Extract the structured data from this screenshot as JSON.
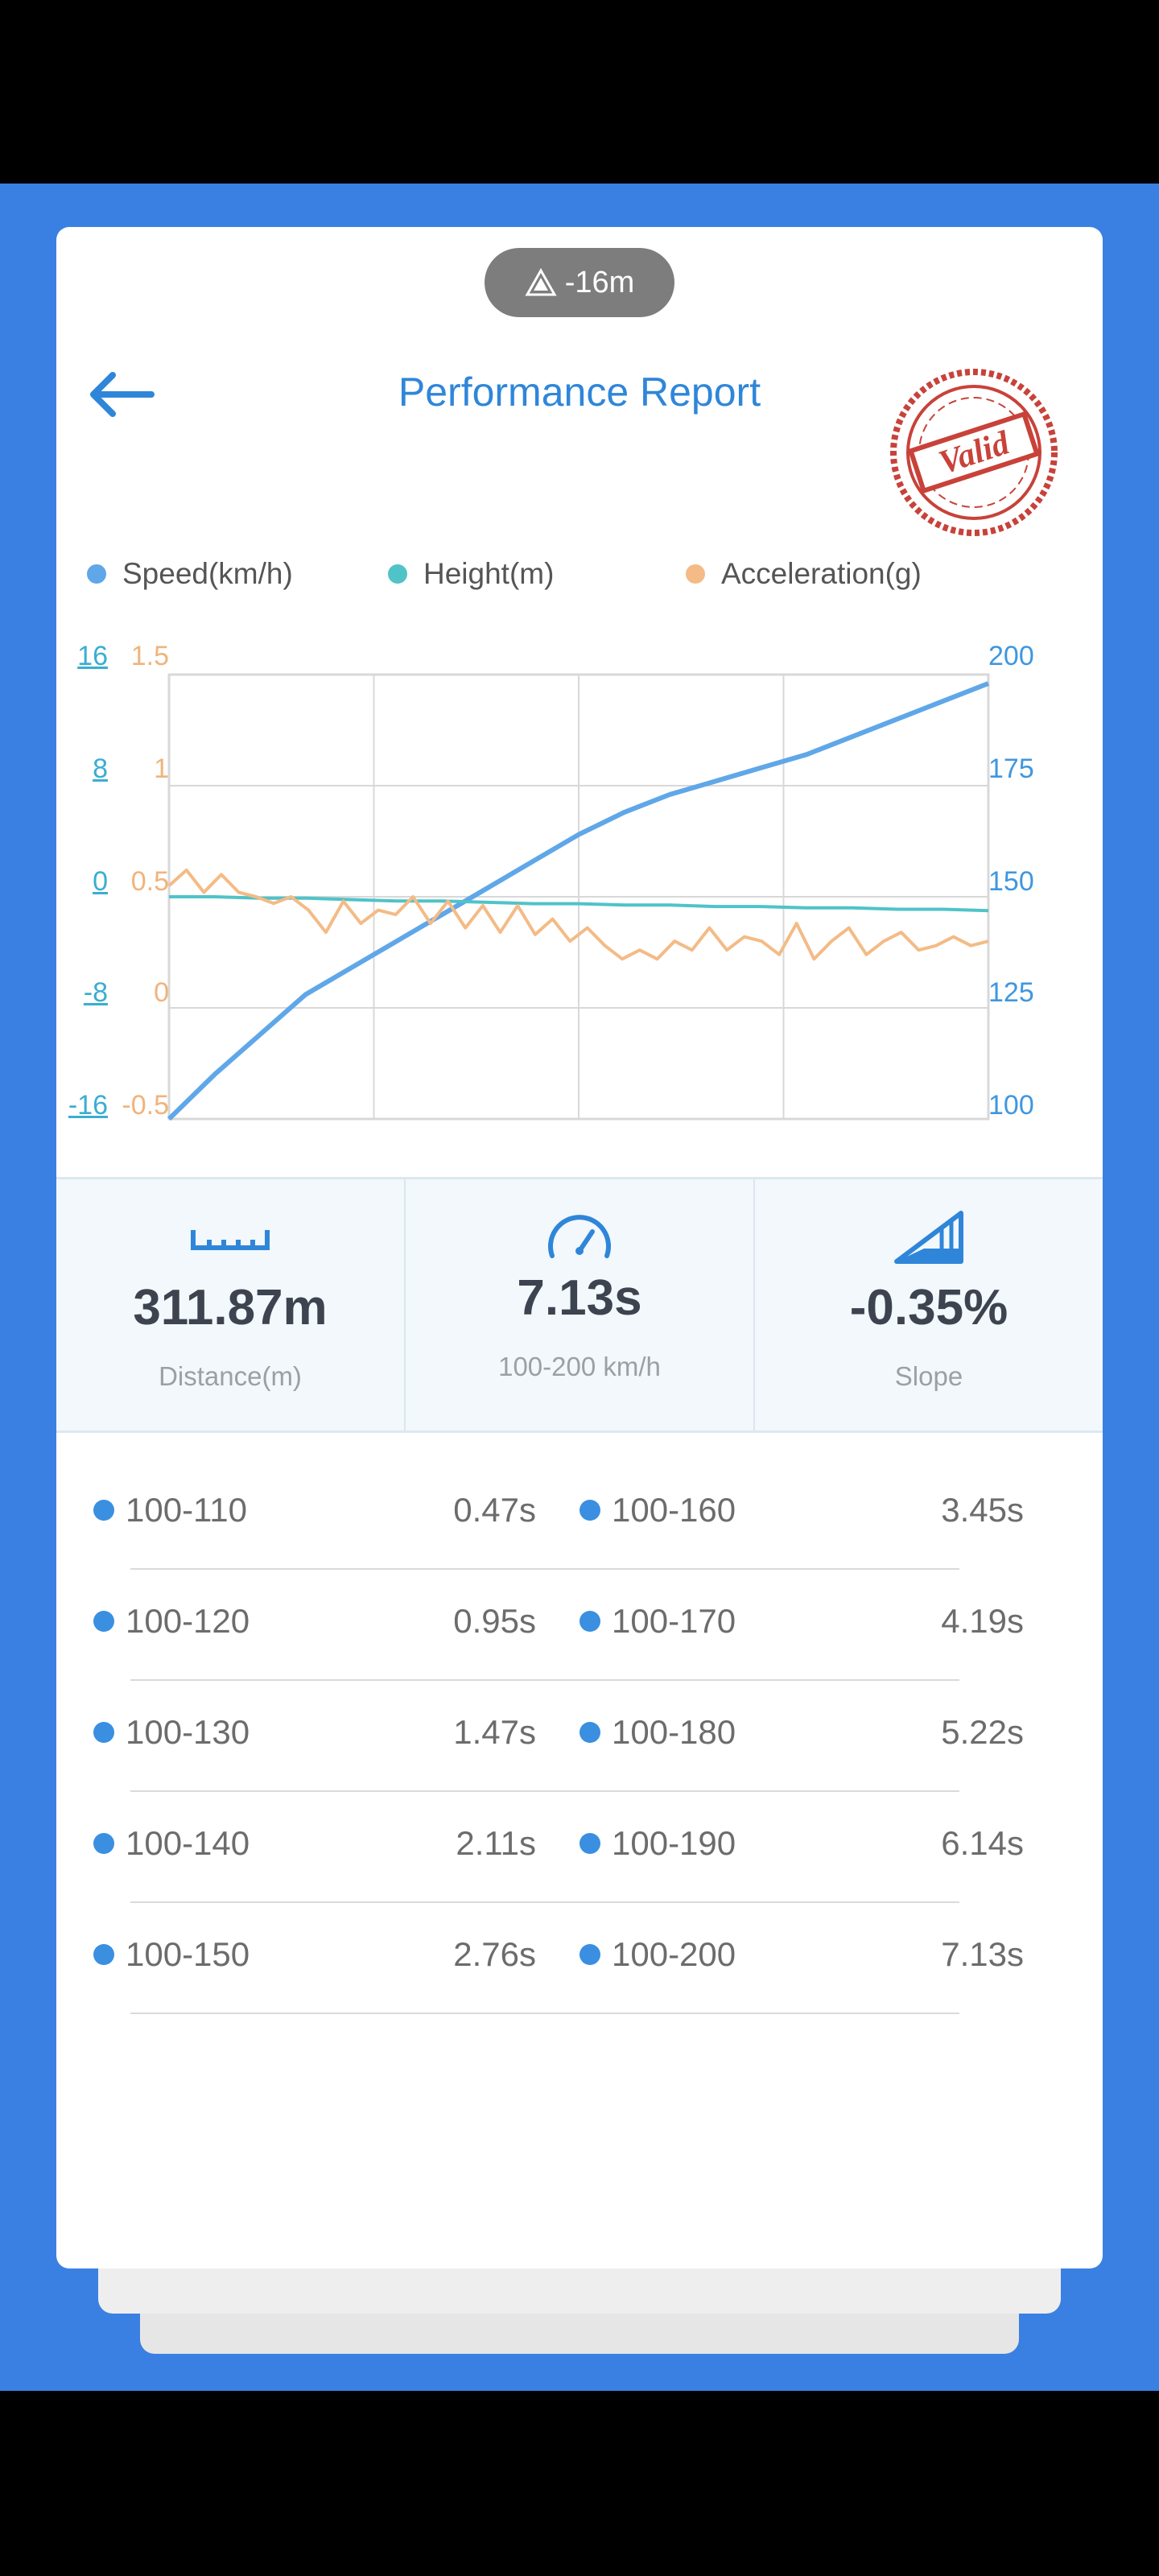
{
  "status_pill": {
    "text": "-16m",
    "icon": "elevation-triangle-icon"
  },
  "header": {
    "title": "Performance Report",
    "back_icon": "back-arrow-icon",
    "stamp_text": "Valid"
  },
  "legend": [
    {
      "label": "Speed(km/h)",
      "color": "#5fa7e8"
    },
    {
      "label": "Height(m)",
      "color": "#4fc3c8"
    },
    {
      "label": "Acceleration(g)",
      "color": "#f4bb86"
    }
  ],
  "axes": {
    "height_ticks": [
      "16",
      "8",
      "0",
      "-8",
      "-16"
    ],
    "accel_ticks": [
      "1.5",
      "1",
      "0.5",
      "0",
      "-0.5"
    ],
    "speed_ticks": [
      "200",
      "175",
      "150",
      "125",
      "100"
    ]
  },
  "chart_data": {
    "type": "line",
    "x_count": 5,
    "series": [
      {
        "name": "Speed(km/h)",
        "axis": "speed",
        "color": "#5fa7e8",
        "values": [
          100,
          110,
          119,
          128,
          134,
          140,
          146,
          152,
          158,
          164,
          169,
          173,
          176,
          179,
          182,
          186,
          190,
          194,
          198
        ]
      },
      {
        "name": "Height(m)",
        "axis": "height",
        "color": "#4fc3c8",
        "values": [
          0,
          0,
          -0.1,
          -0.1,
          -0.2,
          -0.3,
          -0.3,
          -0.4,
          -0.5,
          -0.5,
          -0.6,
          -0.6,
          -0.7,
          -0.7,
          -0.8,
          -0.8,
          -0.9,
          -0.9,
          -1
        ]
      },
      {
        "name": "Acceleration(g)",
        "axis": "accel",
        "color": "#f4bb86",
        "values": [
          0.55,
          0.62,
          0.52,
          0.6,
          0.52,
          0.5,
          0.47,
          0.5,
          0.44,
          0.34,
          0.48,
          0.38,
          0.44,
          0.42,
          0.5,
          0.38,
          0.48,
          0.36,
          0.46,
          0.34,
          0.46,
          0.33,
          0.4,
          0.3,
          0.36,
          0.28,
          0.22,
          0.26,
          0.22,
          0.3,
          0.26,
          0.36,
          0.26,
          0.32,
          0.3,
          0.24,
          0.38,
          0.22,
          0.3,
          0.36,
          0.24,
          0.3,
          0.34,
          0.26,
          0.28,
          0.32,
          0.28,
          0.3
        ]
      }
    ],
    "axes_ranges": {
      "speed": [
        100,
        200
      ],
      "height": [
        -16,
        16
      ],
      "accel": [
        -0.5,
        1.5
      ]
    },
    "grid": true
  },
  "stats": [
    {
      "value": "311.87m",
      "label": "Distance(m)",
      "icon": "ruler-icon"
    },
    {
      "value": "7.13s",
      "label": "100-200 km/h",
      "icon": "speedometer-icon"
    },
    {
      "value": "-0.35%",
      "label": "Slope",
      "icon": "slope-icon"
    }
  ],
  "splits": [
    {
      "left_label": "100-110",
      "left_time": "0.47s",
      "right_label": "100-160",
      "right_time": "3.45s"
    },
    {
      "left_label": "100-120",
      "left_time": "0.95s",
      "right_label": "100-170",
      "right_time": "4.19s"
    },
    {
      "left_label": "100-130",
      "left_time": "1.47s",
      "right_label": "100-180",
      "right_time": "5.22s"
    },
    {
      "left_label": "100-140",
      "left_time": "2.11s",
      "right_label": "100-190",
      "right_time": "6.14s"
    },
    {
      "left_label": "100-150",
      "left_time": "2.76s",
      "right_label": "100-200",
      "right_time": "7.13s"
    }
  ]
}
